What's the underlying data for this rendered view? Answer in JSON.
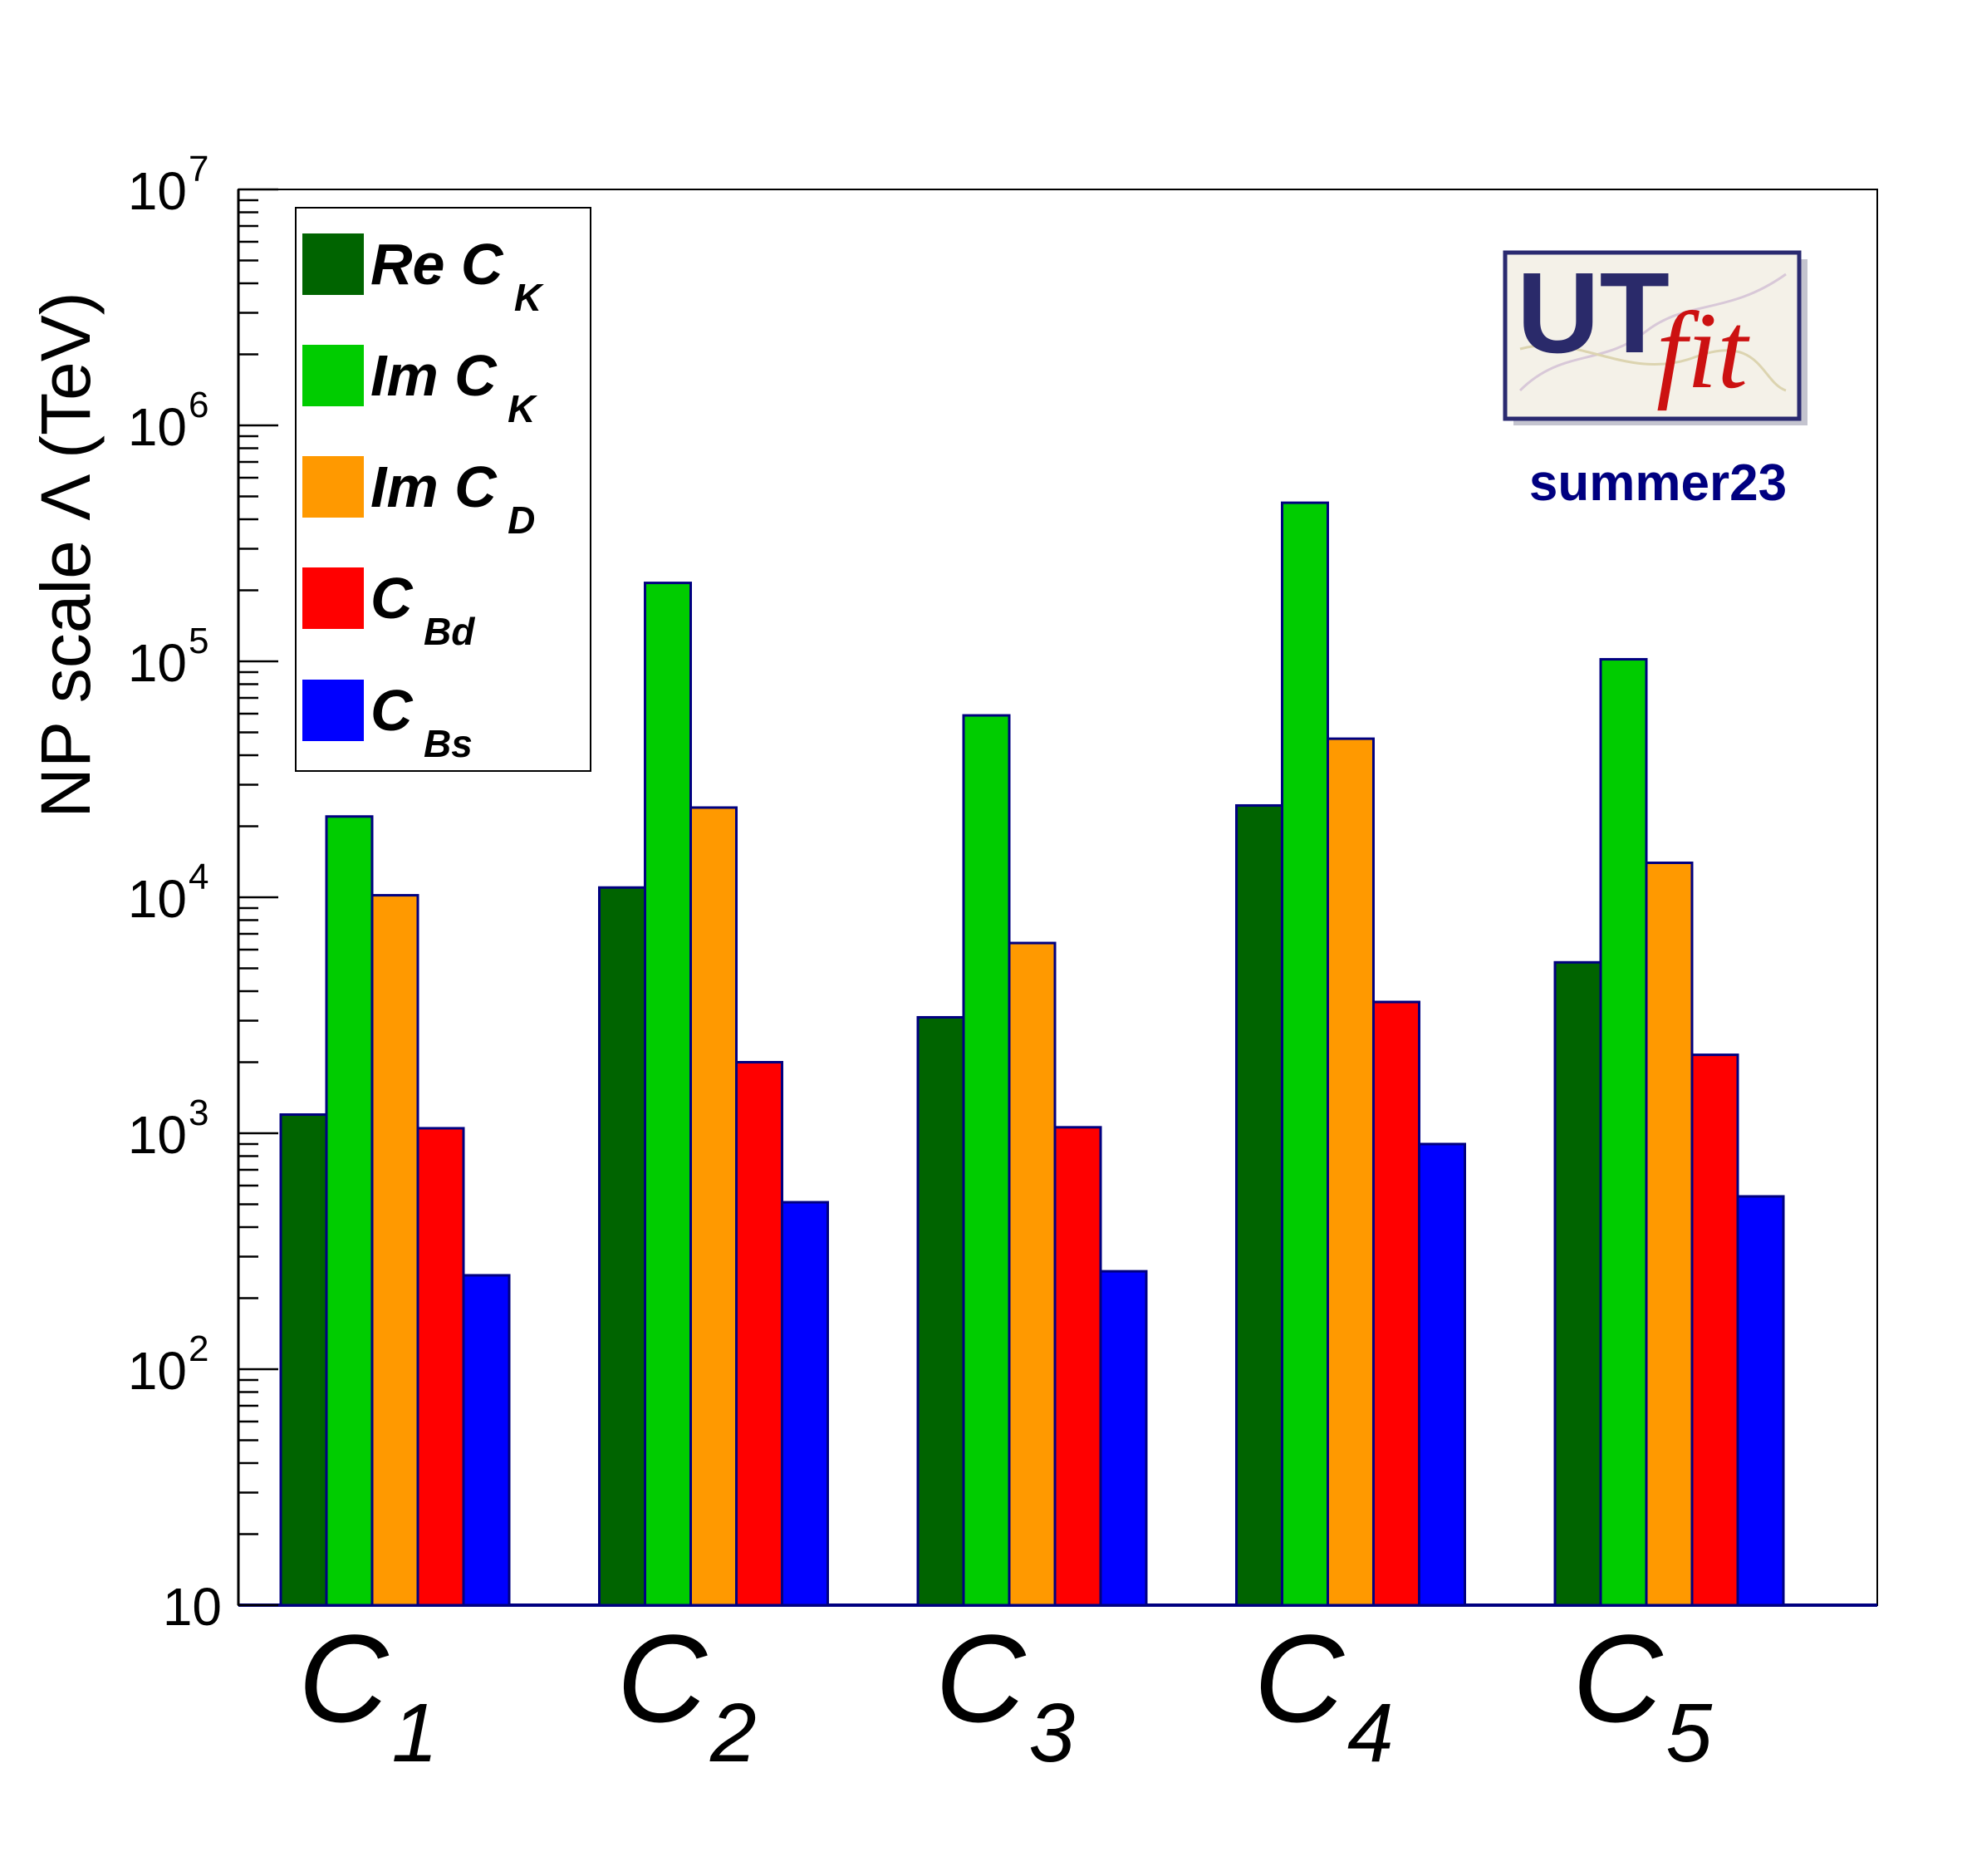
{
  "chart_data": {
    "type": "bar",
    "title": "",
    "ylabel": "NP scale Λ (TeV)",
    "xlabel": "",
    "yscale": "log",
    "ylim": [
      10,
      10000000
    ],
    "grid": false,
    "legend_position": "top-left",
    "y_ticks": [
      {
        "base": "10",
        "exp": ""
      },
      {
        "base": "10",
        "exp": "2"
      },
      {
        "base": "10",
        "exp": "3"
      },
      {
        "base": "10",
        "exp": "4"
      },
      {
        "base": "10",
        "exp": "5"
      },
      {
        "base": "10",
        "exp": "6"
      },
      {
        "base": "10",
        "exp": "7"
      }
    ],
    "categories": [
      {
        "main": "C",
        "sub": "1"
      },
      {
        "main": "C",
        "sub": "2"
      },
      {
        "main": "C",
        "sub": "3"
      },
      {
        "main": "C",
        "sub": "4"
      },
      {
        "main": "C",
        "sub": "5"
      }
    ],
    "series": [
      {
        "name": "Re C_K",
        "label_main": "Re C",
        "label_sub": "K",
        "color": "#006400",
        "values": [
          1200,
          11000,
          3100,
          24500,
          5300
        ]
      },
      {
        "name": "Im C_K",
        "label_main": "Im C",
        "label_sub": "K",
        "color": "#00cc00",
        "values": [
          22000,
          215000,
          59000,
          470000,
          102000
        ]
      },
      {
        "name": "Im C_D",
        "label_main": "Im C",
        "label_sub": "D",
        "color": "#ff9900",
        "values": [
          10200,
          24000,
          6400,
          47000,
          14000
        ]
      },
      {
        "name": "C_Bd",
        "label_main": "C",
        "label_sub": "Bd",
        "color": "#ff0000",
        "values": [
          1050,
          2000,
          1060,
          3600,
          2150
        ]
      },
      {
        "name": "C_Bs",
        "label_main": "C",
        "label_sub": "Bs",
        "color": "#0000ff",
        "values": [
          250,
          510,
          260,
          900,
          540
        ]
      }
    ]
  },
  "logo": {
    "text_ut": "UT",
    "text_fit": "fit",
    "caption": "summer23",
    "caption_color": "#000080"
  },
  "colors": {
    "frame": "#000080",
    "bar_outline": "#000080"
  }
}
